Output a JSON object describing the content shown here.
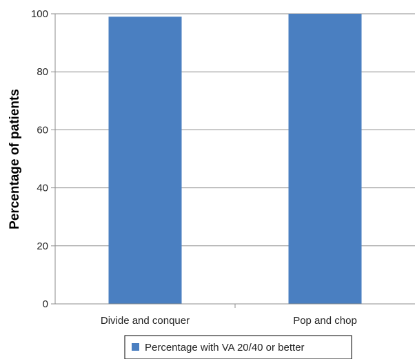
{
  "chart_data": {
    "type": "bar",
    "title": "",
    "xlabel": "",
    "ylabel": "Percentage of patients",
    "categories": [
      "Divide and conquer",
      "Pop and chop"
    ],
    "series": [
      {
        "name": "Percentage with VA 20/40 or better",
        "values": [
          99,
          100
        ],
        "color": "#4a7fc1"
      }
    ],
    "ylim": [
      0,
      100
    ],
    "yticks": [
      0,
      20,
      40,
      60,
      80,
      100
    ],
    "grid": true,
    "legend": "bottom-center"
  }
}
